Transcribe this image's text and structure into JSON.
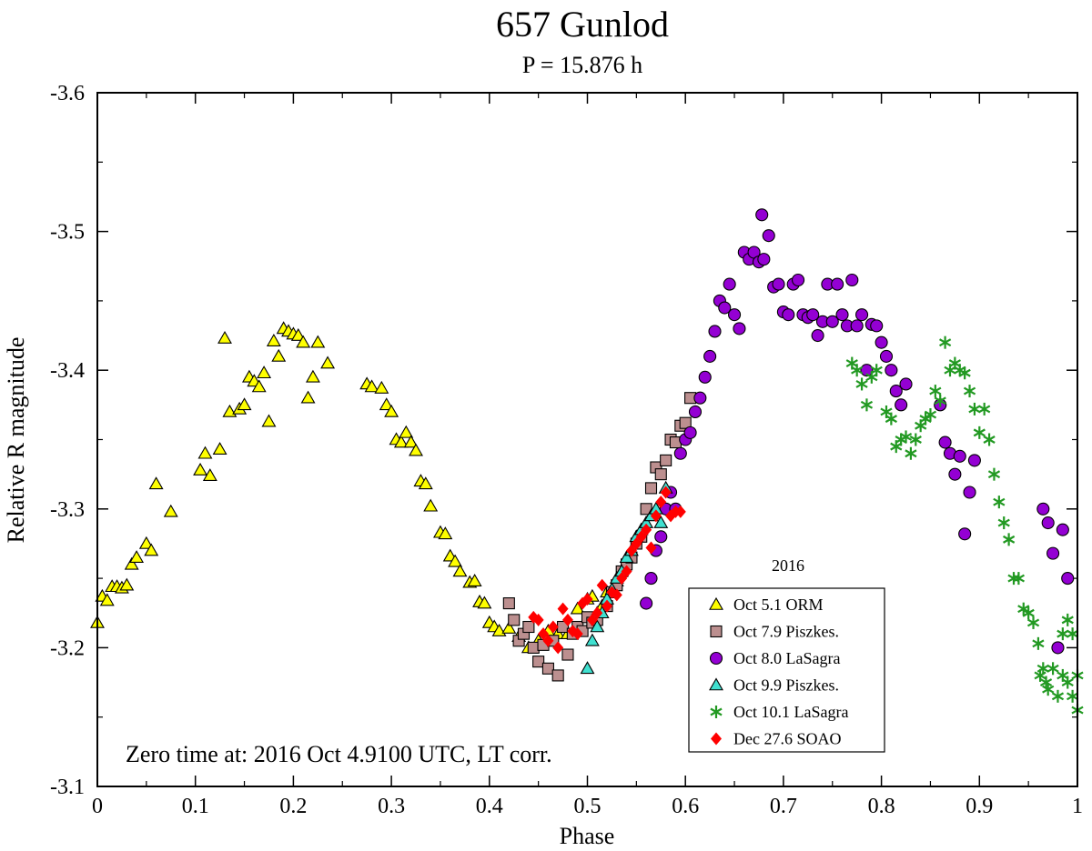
{
  "chart_data": {
    "type": "scatter",
    "title": "657 Gunlod",
    "subtitle": "P = 15.876 h",
    "xlabel": "Phase",
    "ylabel": "Relative R magnitude",
    "xlim": [
      0,
      1
    ],
    "ylim": [
      -3.1,
      -3.6
    ],
    "xticks": [
      0,
      0.1,
      0.2,
      0.3,
      0.4,
      0.5,
      0.6,
      0.7,
      0.8,
      0.9,
      1
    ],
    "yticks": [
      -3.1,
      -3.2,
      -3.3,
      -3.4,
      -3.5,
      -3.6
    ],
    "xtick_labels": [
      "0",
      "0.1",
      "0.2",
      "0.3",
      "0.4",
      "0.5",
      "0.6",
      "0.7",
      "0.8",
      "0.9",
      "1"
    ],
    "ytick_labels": [
      "-3.1",
      "-3.2",
      "-3.3",
      "-3.4",
      "-3.5",
      "-3.6"
    ],
    "legend_title": "2016",
    "legend_position": "lower-right",
    "annotation": "Zero time at: 2016 Oct 4.9100 UTC, LT corr.",
    "series": [
      {
        "name": "Oct 5.1 ORM",
        "marker": "triangle",
        "color": "#ffff00",
        "points": [
          [
            0.0,
            -3.218
          ],
          [
            0.005,
            -3.237
          ],
          [
            0.01,
            -3.234
          ],
          [
            0.015,
            -3.244
          ],
          [
            0.02,
            -3.244
          ],
          [
            0.025,
            -3.243
          ],
          [
            0.03,
            -3.245
          ],
          [
            0.035,
            -3.26
          ],
          [
            0.04,
            -3.265
          ],
          [
            0.05,
            -3.275
          ],
          [
            0.055,
            -3.27
          ],
          [
            0.06,
            -3.318
          ],
          [
            0.075,
            -3.298
          ],
          [
            0.105,
            -3.328
          ],
          [
            0.11,
            -3.34
          ],
          [
            0.115,
            -3.324
          ],
          [
            0.125,
            -3.343
          ],
          [
            0.13,
            -3.423
          ],
          [
            0.135,
            -3.37
          ],
          [
            0.145,
            -3.372
          ],
          [
            0.15,
            -3.375
          ],
          [
            0.155,
            -3.395
          ],
          [
            0.16,
            -3.392
          ],
          [
            0.165,
            -3.388
          ],
          [
            0.17,
            -3.398
          ],
          [
            0.175,
            -3.363
          ],
          [
            0.18,
            -3.421
          ],
          [
            0.185,
            -3.41
          ],
          [
            0.19,
            -3.43
          ],
          [
            0.195,
            -3.428
          ],
          [
            0.2,
            -3.426
          ],
          [
            0.205,
            -3.425
          ],
          [
            0.21,
            -3.42
          ],
          [
            0.215,
            -3.38
          ],
          [
            0.22,
            -3.395
          ],
          [
            0.225,
            -3.42
          ],
          [
            0.235,
            -3.405
          ],
          [
            0.275,
            -3.39
          ],
          [
            0.28,
            -3.388
          ],
          [
            0.29,
            -3.387
          ],
          [
            0.295,
            -3.375
          ],
          [
            0.3,
            -3.37
          ],
          [
            0.305,
            -3.35
          ],
          [
            0.31,
            -3.348
          ],
          [
            0.315,
            -3.355
          ],
          [
            0.32,
            -3.348
          ],
          [
            0.325,
            -3.342
          ],
          [
            0.33,
            -3.32
          ],
          [
            0.335,
            -3.318
          ],
          [
            0.34,
            -3.302
          ],
          [
            0.35,
            -3.283
          ],
          [
            0.355,
            -3.282
          ],
          [
            0.36,
            -3.266
          ],
          [
            0.365,
            -3.262
          ],
          [
            0.37,
            -3.255
          ],
          [
            0.38,
            -3.247
          ],
          [
            0.385,
            -3.248
          ],
          [
            0.39,
            -3.233
          ],
          [
            0.395,
            -3.232
          ],
          [
            0.4,
            -3.218
          ],
          [
            0.405,
            -3.215
          ],
          [
            0.41,
            -3.212
          ],
          [
            0.42,
            -3.214
          ],
          [
            0.43,
            -3.208
          ],
          [
            0.44,
            -3.2
          ],
          [
            0.45,
            -3.205
          ],
          [
            0.46,
            -3.212
          ],
          [
            0.47,
            -3.21
          ],
          [
            0.48,
            -3.21
          ],
          [
            0.49,
            -3.228
          ],
          [
            0.5,
            -3.235
          ],
          [
            0.505,
            -3.237
          ],
          [
            0.51,
            -3.225
          ],
          [
            0.515,
            -3.23
          ],
          [
            0.52,
            -3.24
          ],
          [
            0.53,
            -3.248
          ]
        ]
      },
      {
        "name": "Oct 7.9 Piszkes.",
        "marker": "square",
        "color": "#bc8f8f",
        "points": [
          [
            0.42,
            -3.232
          ],
          [
            0.425,
            -3.22
          ],
          [
            0.43,
            -3.205
          ],
          [
            0.435,
            -3.21
          ],
          [
            0.44,
            -3.215
          ],
          [
            0.445,
            -3.2
          ],
          [
            0.45,
            -3.19
          ],
          [
            0.455,
            -3.202
          ],
          [
            0.46,
            -3.185
          ],
          [
            0.465,
            -3.205
          ],
          [
            0.47,
            -3.18
          ],
          [
            0.475,
            -3.215
          ],
          [
            0.48,
            -3.195
          ],
          [
            0.485,
            -3.21
          ],
          [
            0.49,
            -3.215
          ],
          [
            0.495,
            -3.212
          ],
          [
            0.5,
            -3.222
          ],
          [
            0.505,
            -3.218
          ],
          [
            0.51,
            -3.22
          ],
          [
            0.52,
            -3.23
          ],
          [
            0.525,
            -3.24
          ],
          [
            0.53,
            -3.245
          ],
          [
            0.535,
            -3.255
          ],
          [
            0.54,
            -3.26
          ],
          [
            0.545,
            -3.265
          ],
          [
            0.55,
            -3.275
          ],
          [
            0.555,
            -3.28
          ],
          [
            0.56,
            -3.3
          ],
          [
            0.565,
            -3.315
          ],
          [
            0.57,
            -3.33
          ],
          [
            0.575,
            -3.325
          ],
          [
            0.58,
            -3.335
          ],
          [
            0.585,
            -3.35
          ],
          [
            0.59,
            -3.348
          ],
          [
            0.595,
            -3.36
          ],
          [
            0.6,
            -3.362
          ],
          [
            0.605,
            -3.38
          ]
        ]
      },
      {
        "name": "Oct 8.0 LaSagra",
        "marker": "circle",
        "color": "#9400d3",
        "points": [
          [
            0.56,
            -3.232
          ],
          [
            0.565,
            -3.25
          ],
          [
            0.57,
            -3.27
          ],
          [
            0.575,
            -3.28
          ],
          [
            0.58,
            -3.3
          ],
          [
            0.585,
            -3.312
          ],
          [
            0.59,
            -3.3
          ],
          [
            0.595,
            -3.34
          ],
          [
            0.6,
            -3.35
          ],
          [
            0.605,
            -3.355
          ],
          [
            0.61,
            -3.37
          ],
          [
            0.615,
            -3.38
          ],
          [
            0.62,
            -3.395
          ],
          [
            0.625,
            -3.41
          ],
          [
            0.63,
            -3.428
          ],
          [
            0.635,
            -3.45
          ],
          [
            0.64,
            -3.445
          ],
          [
            0.645,
            -3.462
          ],
          [
            0.65,
            -3.44
          ],
          [
            0.655,
            -3.43
          ],
          [
            0.66,
            -3.485
          ],
          [
            0.665,
            -3.48
          ],
          [
            0.67,
            -3.485
          ],
          [
            0.675,
            -3.478
          ],
          [
            0.678,
            -3.512
          ],
          [
            0.68,
            -3.48
          ],
          [
            0.685,
            -3.497
          ],
          [
            0.69,
            -3.46
          ],
          [
            0.695,
            -3.462
          ],
          [
            0.7,
            -3.442
          ],
          [
            0.705,
            -3.44
          ],
          [
            0.71,
            -3.462
          ],
          [
            0.715,
            -3.465
          ],
          [
            0.72,
            -3.44
          ],
          [
            0.725,
            -3.438
          ],
          [
            0.73,
            -3.44
          ],
          [
            0.735,
            -3.425
          ],
          [
            0.74,
            -3.435
          ],
          [
            0.745,
            -3.462
          ],
          [
            0.75,
            -3.435
          ],
          [
            0.755,
            -3.462
          ],
          [
            0.76,
            -3.44
          ],
          [
            0.765,
            -3.432
          ],
          [
            0.77,
            -3.465
          ],
          [
            0.775,
            -3.432
          ],
          [
            0.78,
            -3.44
          ],
          [
            0.785,
            -3.4
          ],
          [
            0.79,
            -3.433
          ],
          [
            0.795,
            -3.432
          ],
          [
            0.8,
            -3.42
          ],
          [
            0.805,
            -3.41
          ],
          [
            0.81,
            -3.4
          ],
          [
            0.815,
            -3.385
          ],
          [
            0.82,
            -3.375
          ],
          [
            0.825,
            -3.39
          ],
          [
            0.86,
            -3.375
          ],
          [
            0.865,
            -3.348
          ],
          [
            0.87,
            -3.34
          ],
          [
            0.875,
            -3.325
          ],
          [
            0.88,
            -3.338
          ],
          [
            0.885,
            -3.282
          ],
          [
            0.89,
            -3.312
          ],
          [
            0.895,
            -3.335
          ],
          [
            0.965,
            -3.3
          ],
          [
            0.97,
            -3.29
          ],
          [
            0.975,
            -3.268
          ],
          [
            0.98,
            -3.2
          ],
          [
            0.985,
            -3.285
          ],
          [
            0.99,
            -3.25
          ]
        ]
      },
      {
        "name": "Oct 9.9 Piszkes.",
        "marker": "triangle",
        "color": "#40e0d0",
        "points": [
          [
            0.5,
            -3.185
          ],
          [
            0.505,
            -3.205
          ],
          [
            0.51,
            -3.215
          ],
          [
            0.515,
            -3.225
          ],
          [
            0.52,
            -3.235
          ],
          [
            0.525,
            -3.242
          ],
          [
            0.53,
            -3.25
          ],
          [
            0.535,
            -3.255
          ],
          [
            0.54,
            -3.265
          ],
          [
            0.545,
            -3.27
          ],
          [
            0.55,
            -3.28
          ],
          [
            0.555,
            -3.285
          ],
          [
            0.56,
            -3.29
          ],
          [
            0.565,
            -3.295
          ],
          [
            0.57,
            -3.3
          ],
          [
            0.575,
            -3.29
          ],
          [
            0.58,
            -3.315
          ]
        ]
      },
      {
        "name": "Oct 10.1 LaSagra",
        "marker": "asterisk",
        "color": "#229922",
        "points": [
          [
            0.77,
            -3.405
          ],
          [
            0.775,
            -3.4
          ],
          [
            0.78,
            -3.39
          ],
          [
            0.785,
            -3.375
          ],
          [
            0.79,
            -3.395
          ],
          [
            0.795,
            -3.4
          ],
          [
            0.805,
            -3.37
          ],
          [
            0.81,
            -3.365
          ],
          [
            0.815,
            -3.345
          ],
          [
            0.82,
            -3.35
          ],
          [
            0.825,
            -3.352
          ],
          [
            0.83,
            -3.34
          ],
          [
            0.835,
            -3.35
          ],
          [
            0.84,
            -3.36
          ],
          [
            0.845,
            -3.365
          ],
          [
            0.85,
            -3.368
          ],
          [
            0.855,
            -3.385
          ],
          [
            0.86,
            -3.378
          ],
          [
            0.865,
            -3.42
          ],
          [
            0.87,
            -3.4
          ],
          [
            0.875,
            -3.405
          ],
          [
            0.88,
            -3.4
          ],
          [
            0.885,
            -3.398
          ],
          [
            0.89,
            -3.385
          ],
          [
            0.895,
            -3.372
          ],
          [
            0.9,
            -3.355
          ],
          [
            0.905,
            -3.372
          ],
          [
            0.91,
            -3.35
          ],
          [
            0.915,
            -3.325
          ],
          [
            0.92,
            -3.305
          ],
          [
            0.925,
            -3.29
          ],
          [
            0.93,
            -3.278
          ],
          [
            0.935,
            -3.25
          ],
          [
            0.94,
            -3.25
          ],
          [
            0.945,
            -3.228
          ],
          [
            0.95,
            -3.225
          ],
          [
            0.955,
            -3.218
          ],
          [
            0.96,
            -3.203
          ],
          [
            0.965,
            -3.185
          ],
          [
            0.97,
            -3.17
          ],
          [
            0.975,
            -3.185
          ],
          [
            0.98,
            -3.165
          ],
          [
            0.985,
            -3.18
          ],
          [
            0.99,
            -3.175
          ],
          [
            0.995,
            -3.165
          ],
          [
            1.0,
            -3.155
          ],
          [
            0.962,
            -3.18
          ],
          [
            0.968,
            -3.175
          ],
          [
            0.985,
            -3.21
          ],
          [
            0.99,
            -3.22
          ],
          [
            0.995,
            -3.21
          ],
          [
            1.0,
            -3.18
          ]
        ]
      },
      {
        "name": "Dec 27.6 SOAO",
        "marker": "diamond",
        "color": "#ff0000",
        "points": [
          [
            0.445,
            -3.222
          ],
          [
            0.45,
            -3.22
          ],
          [
            0.455,
            -3.21
          ],
          [
            0.46,
            -3.205
          ],
          [
            0.465,
            -3.215
          ],
          [
            0.47,
            -3.2
          ],
          [
            0.475,
            -3.228
          ],
          [
            0.48,
            -3.22
          ],
          [
            0.485,
            -3.212
          ],
          [
            0.49,
            -3.21
          ],
          [
            0.495,
            -3.232
          ],
          [
            0.5,
            -3.235
          ],
          [
            0.505,
            -3.22
          ],
          [
            0.51,
            -3.225
          ],
          [
            0.515,
            -3.245
          ],
          [
            0.52,
            -3.23
          ],
          [
            0.525,
            -3.24
          ],
          [
            0.53,
            -3.238
          ],
          [
            0.535,
            -3.25
          ],
          [
            0.54,
            -3.255
          ],
          [
            0.545,
            -3.27
          ],
          [
            0.55,
            -3.275
          ],
          [
            0.555,
            -3.28
          ],
          [
            0.56,
            -3.285
          ],
          [
            0.565,
            -3.272
          ],
          [
            0.57,
            -3.295
          ],
          [
            0.575,
            -3.305
          ],
          [
            0.58,
            -3.312
          ],
          [
            0.585,
            -3.295
          ],
          [
            0.59,
            -3.298
          ],
          [
            0.595,
            -3.298
          ]
        ]
      }
    ]
  }
}
